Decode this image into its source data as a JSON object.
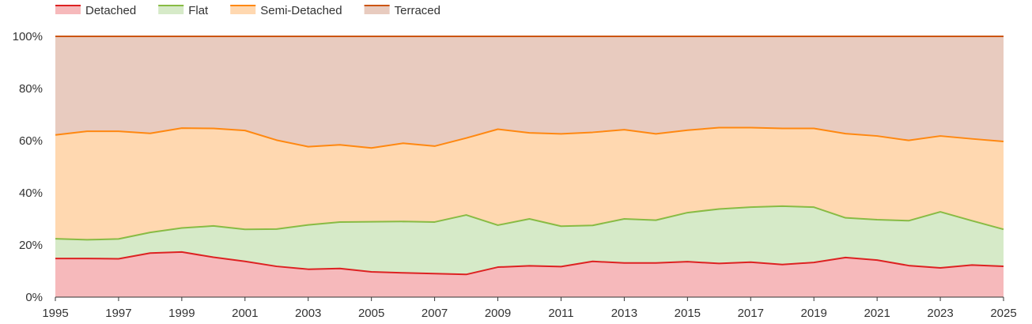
{
  "chart_data": {
    "type": "area",
    "stacked": true,
    "percent": true,
    "x": [
      1995,
      1996,
      1997,
      1998,
      1999,
      2000,
      2001,
      2002,
      2003,
      2004,
      2005,
      2006,
      2007,
      2008,
      2009,
      2010,
      2011,
      2012,
      2013,
      2014,
      2015,
      2016,
      2017,
      2018,
      2019,
      2020,
      2021,
      2022,
      2023,
      2024,
      2025
    ],
    "x_ticks": [
      "1995",
      "1997",
      "1999",
      "2001",
      "2003",
      "2005",
      "2007",
      "2009",
      "2011",
      "2013",
      "2015",
      "2017",
      "2019",
      "2021",
      "2023",
      "2025"
    ],
    "y_ticks": [
      "0%",
      "20%",
      "40%",
      "60%",
      "80%",
      "100%"
    ],
    "ylim": [
      0,
      100
    ],
    "grid": true,
    "legend_position": "top-left",
    "series": [
      {
        "name": "Detached",
        "line_color": "#dd2222",
        "fill_color": "#f6b9bb",
        "values": [
          14.8,
          14.8,
          14.7,
          16.9,
          17.3,
          15.3,
          13.7,
          11.8,
          10.7,
          11.0,
          9.7,
          9.3,
          9.0,
          8.7,
          11.5,
          12.0,
          11.7,
          13.7,
          13.1,
          13.1,
          13.6,
          12.9,
          13.4,
          12.5,
          13.3,
          15.2,
          14.2,
          12.1,
          11.2,
          12.3,
          11.8
        ]
      },
      {
        "name": "Flat",
        "line_color": "#88bb44",
        "fill_color": "#d6eac8",
        "values": [
          7.6,
          7.2,
          7.6,
          7.9,
          9.2,
          12.0,
          12.3,
          14.3,
          17.0,
          17.8,
          19.2,
          19.7,
          19.8,
          22.8,
          16.1,
          18.0,
          15.5,
          13.8,
          16.9,
          16.4,
          18.8,
          20.9,
          21.1,
          22.4,
          21.2,
          15.2,
          15.5,
          17.2,
          21.5,
          17.0,
          14.2
        ]
      },
      {
        "name": "Semi-Detached",
        "line_color": "#ff8811",
        "fill_color": "#ffd8b0",
        "values": [
          39.8,
          41.6,
          41.3,
          38.0,
          38.3,
          37.4,
          37.9,
          34.1,
          30.0,
          29.6,
          28.3,
          30.0,
          29.1,
          29.5,
          36.8,
          33.0,
          35.4,
          35.7,
          34.2,
          33.1,
          31.6,
          31.2,
          30.5,
          29.8,
          30.2,
          32.3,
          32.1,
          30.8,
          29.1,
          31.4,
          33.7
        ]
      },
      {
        "name": "Terraced",
        "line_color": "#cc5511",
        "fill_color": "#e8cbbf",
        "values": [
          37.8,
          36.4,
          36.4,
          37.2,
          35.2,
          35.3,
          36.1,
          39.8,
          42.3,
          41.6,
          42.8,
          41.0,
          42.1,
          39.0,
          35.6,
          37.0,
          37.4,
          36.8,
          35.8,
          37.4,
          36.0,
          35.0,
          35.0,
          35.3,
          35.3,
          37.3,
          38.2,
          39.9,
          38.2,
          39.3,
          40.3
        ]
      }
    ]
  }
}
